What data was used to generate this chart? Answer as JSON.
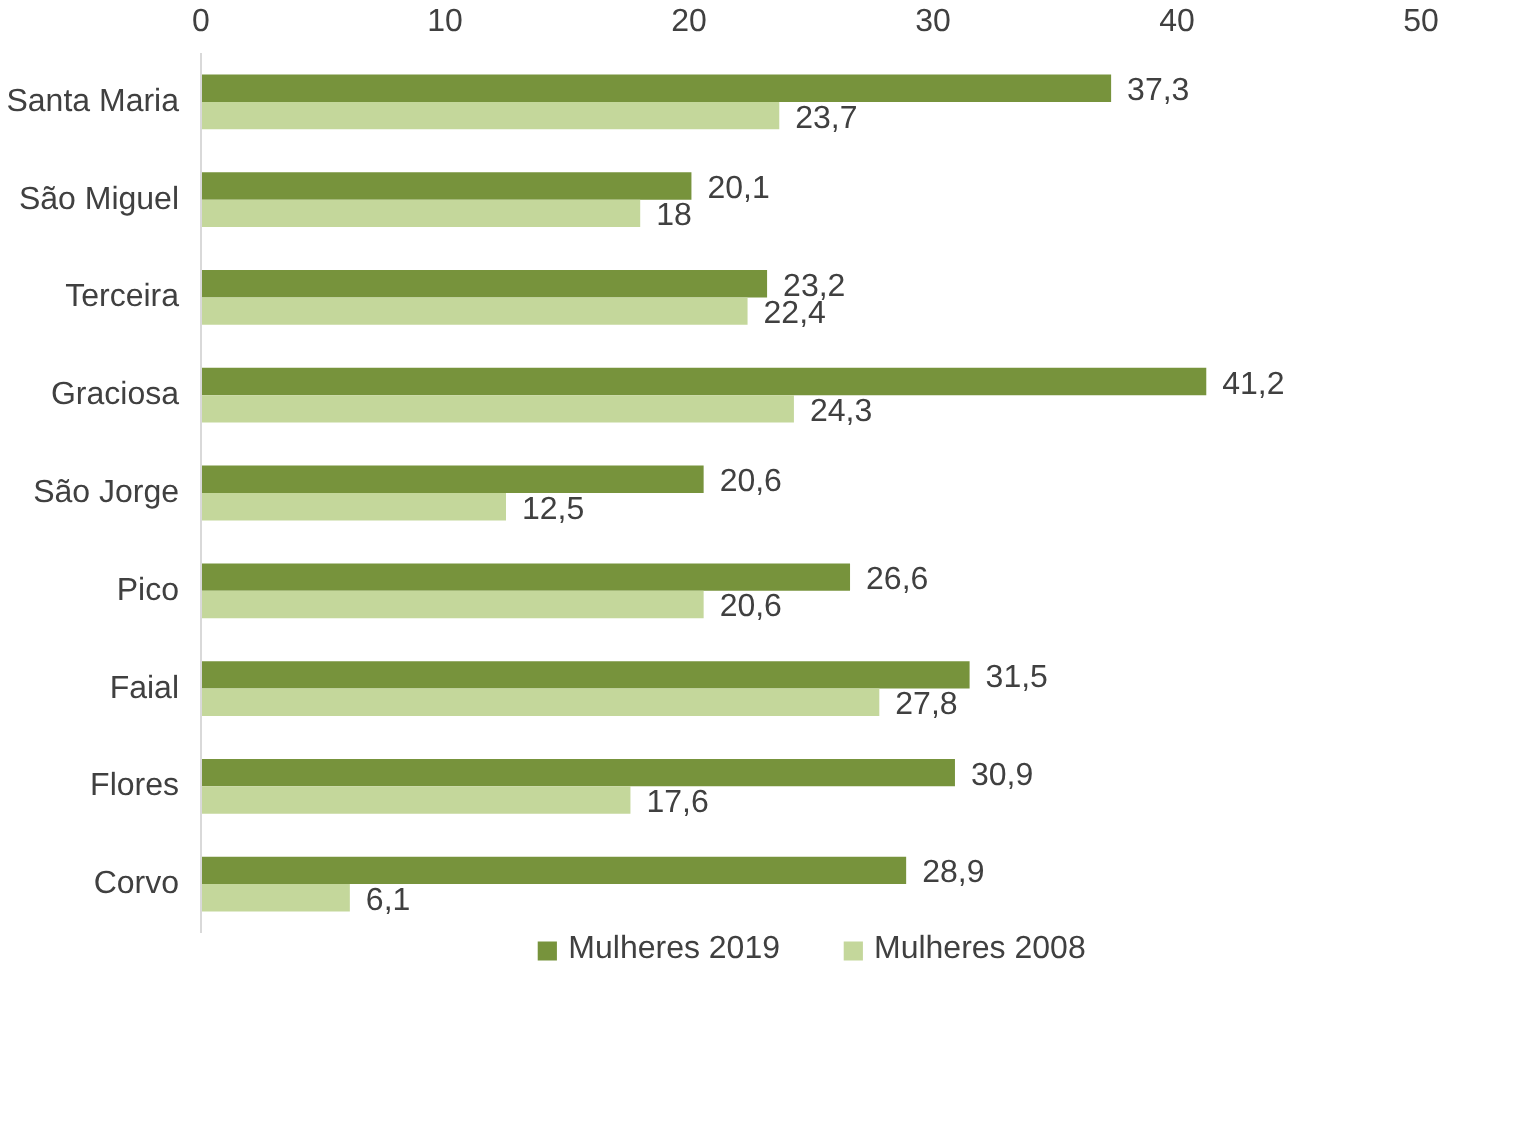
{
  "chart_data": {
    "type": "bar",
    "orientation": "horizontal",
    "categories": [
      "Santa Maria",
      "São Miguel",
      "Terceira",
      "Graciosa",
      "São Jorge",
      "Pico",
      "Faial",
      "Flores",
      "Corvo"
    ],
    "series": [
      {
        "name": "Mulheres 2019",
        "color": "#77933c",
        "values": [
          37.3,
          20.1,
          23.2,
          41.2,
          20.6,
          26.6,
          31.5,
          30.9,
          28.9
        ],
        "value_labels": [
          "37,3",
          "20,1",
          "23,2",
          "41,2",
          "20,6",
          "26,6",
          "31,5",
          "30,9",
          "28,9"
        ]
      },
      {
        "name": "Mulheres 2008",
        "color": "#c4d79b",
        "values": [
          23.7,
          18,
          22.4,
          24.3,
          12.5,
          20.6,
          27.8,
          17.6,
          6.1
        ],
        "value_labels": [
          "23,7",
          "18",
          "22,4",
          "24,3",
          "12,5",
          "20,6",
          "27,8",
          "17,6",
          "6,1"
        ]
      }
    ],
    "xlim": [
      0,
      50
    ],
    "xticks": [
      0,
      10,
      20,
      30,
      40,
      50
    ],
    "grid": false,
    "legend": "bottom"
  }
}
